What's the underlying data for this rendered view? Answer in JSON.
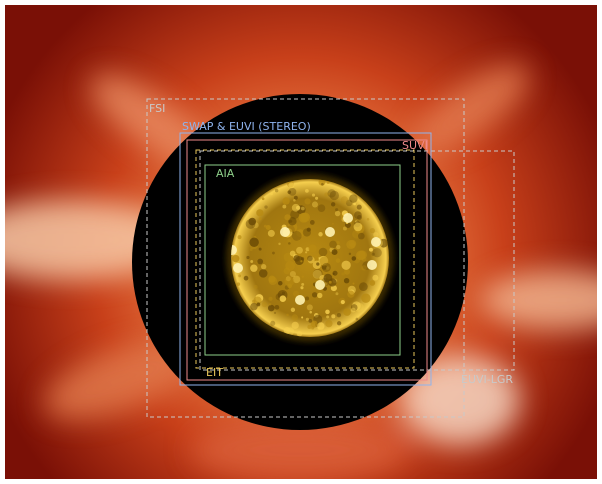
{
  "image": {
    "subject": "solar corona composite with instrument field-of-view outlines",
    "colors": {
      "background": "#ffffff",
      "corona_inner": "#f3d2b0",
      "corona_mid": "#c8401a",
      "corona_outer": "#7a1006",
      "occulter": "#000000",
      "sun_bright": "#f6cf4e",
      "sun_mid": "#b88a12",
      "sun_dark": "#6a4a05"
    }
  },
  "fov_boxes": [
    {
      "id": "fsi",
      "label": "FSI",
      "color": "#c9c9c9",
      "style": "dashed"
    },
    {
      "id": "swap",
      "label": "SWAP & EUVI (STEREO)",
      "color": "#8fb4ee",
      "style": "solid"
    },
    {
      "id": "suvi",
      "label": "SUVI",
      "color": "#f08a8a",
      "style": "solid"
    },
    {
      "id": "eit",
      "label": "EIT",
      "color": "#e8c65a",
      "style": "dashed"
    },
    {
      "id": "aia",
      "label": "AIA",
      "color": "#8ed08a",
      "style": "solid"
    },
    {
      "id": "euvi-lgr",
      "label": "EUVI-LGR",
      "color": "#c9c9c9",
      "style": "dashed"
    }
  ]
}
